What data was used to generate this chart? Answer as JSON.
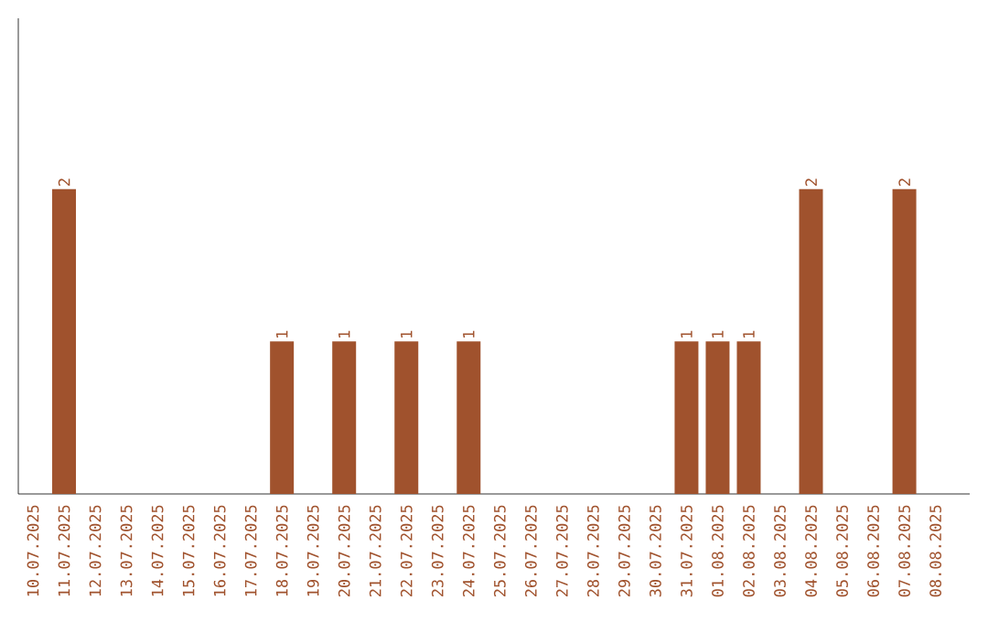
{
  "chart_data": {
    "type": "bar",
    "categories": [
      "10.07.2025",
      "11.07.2025",
      "12.07.2025",
      "13.07.2025",
      "14.07.2025",
      "15.07.2025",
      "16.07.2025",
      "17.07.2025",
      "18.07.2025",
      "19.07.2025",
      "20.07.2025",
      "21.07.2025",
      "22.07.2025",
      "23.07.2025",
      "24.07.2025",
      "25.07.2025",
      "26.07.2025",
      "27.07.2025",
      "28.07.2025",
      "29.07.2025",
      "30.07.2025",
      "31.07.2025",
      "01.08.2025",
      "02.08.2025",
      "03.08.2025",
      "04.08.2025",
      "05.08.2025",
      "06.08.2025",
      "07.08.2025",
      "08.08.2025"
    ],
    "values": [
      0,
      2,
      0,
      0,
      0,
      0,
      0,
      0,
      1,
      0,
      1,
      0,
      1,
      0,
      1,
      0,
      0,
      0,
      0,
      0,
      0,
      1,
      1,
      1,
      0,
      2,
      0,
      0,
      2,
      0
    ],
    "value_labels": [
      null,
      "2",
      null,
      null,
      null,
      null,
      null,
      null,
      "1",
      null,
      "1",
      null,
      "1",
      null,
      "1",
      null,
      null,
      null,
      null,
      null,
      null,
      "1",
      "1",
      "1",
      null,
      "2",
      null,
      null,
      "2",
      null
    ],
    "color": "#a0522d",
    "tick_labels": "x",
    "grid": false
  }
}
